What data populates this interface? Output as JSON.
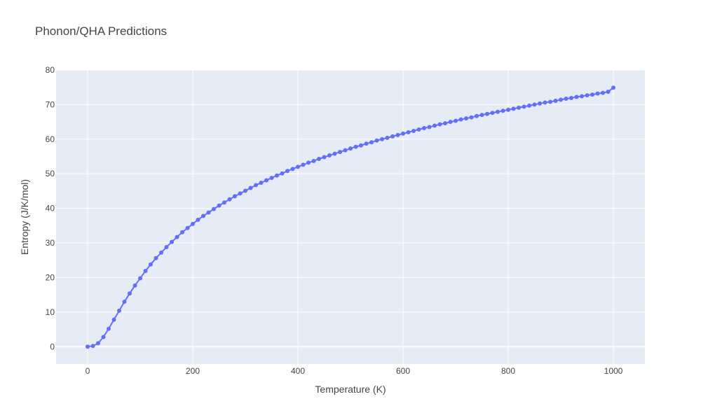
{
  "chart_data": {
    "type": "line",
    "title": "Phonon/QHA Predictions",
    "xlabel": "Temperature (K)",
    "ylabel": "Entropy (J/K/mol)",
    "xlim": [
      -60,
      1060
    ],
    "ylim": [
      -5,
      80
    ],
    "x_ticks": [
      0,
      200,
      400,
      600,
      800,
      1000
    ],
    "y_ticks": [
      0,
      10,
      20,
      30,
      40,
      50,
      60,
      70,
      80
    ],
    "grid": true,
    "legend": "none",
    "colors": {
      "plot_bg": "#e5ecf6",
      "series": "#636efa",
      "grid": "#ffffff"
    },
    "series": [
      {
        "x": [
          0,
          10,
          20,
          30,
          40,
          50,
          60,
          70,
          80,
          90,
          100,
          110,
          120,
          130,
          140,
          150,
          160,
          170,
          180,
          190,
          200,
          210,
          220,
          230,
          240,
          250,
          260,
          270,
          280,
          290,
          300,
          310,
          320,
          330,
          340,
          350,
          360,
          370,
          380,
          390,
          400,
          410,
          420,
          430,
          440,
          450,
          460,
          470,
          480,
          490,
          500,
          510,
          520,
          530,
          540,
          550,
          560,
          570,
          580,
          590,
          600,
          610,
          620,
          630,
          640,
          650,
          660,
          670,
          680,
          690,
          700,
          710,
          720,
          730,
          740,
          750,
          760,
          770,
          780,
          790,
          800,
          810,
          820,
          830,
          840,
          850,
          860,
          870,
          880,
          890,
          900,
          910,
          920,
          930,
          940,
          950,
          960,
          970,
          980,
          990,
          1000
        ],
        "values": [
          0,
          0.2,
          1.0,
          2.8,
          5.2,
          7.8,
          10.4,
          13.0,
          15.4,
          17.7,
          19.8,
          21.9,
          23.8,
          25.6,
          27.2,
          28.8,
          30.3,
          31.7,
          33.1,
          34.3,
          35.5,
          36.7,
          37.8,
          38.8,
          39.8,
          40.8,
          41.7,
          42.6,
          43.5,
          44.3,
          45.1,
          45.9,
          46.7,
          47.4,
          48.1,
          48.8,
          49.5,
          50.1,
          50.8,
          51.4,
          52.0,
          52.6,
          53.2,
          53.7,
          54.3,
          54.8,
          55.3,
          55.8,
          56.3,
          56.8,
          57.3,
          57.8,
          58.2,
          58.7,
          59.1,
          59.6,
          60.0,
          60.4,
          60.8,
          61.2,
          61.6,
          62.0,
          62.4,
          62.8,
          63.2,
          63.5,
          63.9,
          64.3,
          64.6,
          65.0,
          65.3,
          65.7,
          66.0,
          66.3,
          66.7,
          67.0,
          67.3,
          67.6,
          67.9,
          68.2,
          68.5,
          68.8,
          69.1,
          69.4,
          69.7,
          70.0,
          70.3,
          70.6,
          70.8,
          71.1,
          71.4,
          71.7,
          71.9,
          72.2,
          72.4,
          72.7,
          72.9,
          73.2,
          73.4,
          73.7,
          74.9
        ]
      }
    ]
  }
}
